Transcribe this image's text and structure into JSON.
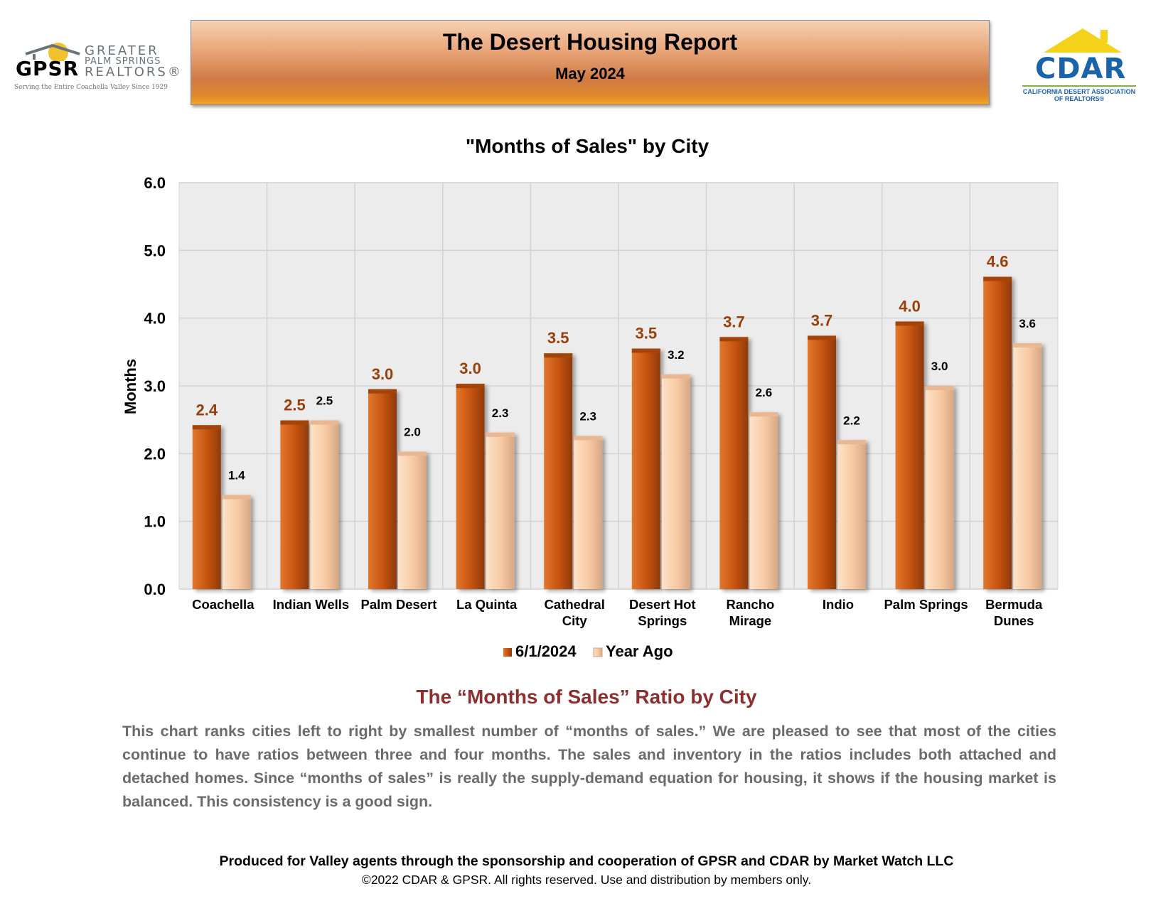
{
  "header": {
    "title": "The Desert Housing Report",
    "subtitle": "May 2024"
  },
  "logos": {
    "gpsr": {
      "letters": "GPSR",
      "line1": "GREATER",
      "line2": "PALM SPRINGS",
      "line3": "REALTORS®",
      "tagline": "Serving the Entire Coachella Valley Since 1929"
    },
    "cdar": {
      "letters": "CDAR",
      "subline1": "CALIFORNIA DESERT ASSOCIATION",
      "subline2": "OF REALTORS®"
    }
  },
  "chart_data": {
    "type": "bar",
    "title": "\"Months of Sales\" by City",
    "xlabel": "",
    "ylabel": "Months",
    "ylim": [
      0,
      6
    ],
    "yticks": [
      "0.0",
      "1.0",
      "2.0",
      "3.0",
      "4.0",
      "5.0",
      "6.0"
    ],
    "grid": true,
    "legend_position": "bottom",
    "categories": [
      [
        "Coachella"
      ],
      [
        "Indian Wells"
      ],
      [
        "Palm Desert"
      ],
      [
        "La Quinta"
      ],
      [
        "Cathedral",
        "City"
      ],
      [
        "Desert Hot",
        "Springs"
      ],
      [
        "Rancho",
        "Mirage"
      ],
      [
        "Indio"
      ],
      [
        "Palm Springs"
      ],
      [
        "Bermuda",
        "Dunes"
      ]
    ],
    "series": [
      {
        "name": "6/1/2024",
        "color": "#c95a15",
        "values": [
          2.42,
          2.49,
          2.95,
          3.03,
          3.48,
          3.55,
          3.72,
          3.74,
          3.95,
          4.61
        ],
        "labels": [
          "2.4",
          "2.5",
          "3.0",
          "3.0",
          "3.5",
          "3.5",
          "3.7",
          "3.7",
          "4.0",
          "4.6"
        ]
      },
      {
        "name": "Year Ago",
        "color": "#f8ceaa",
        "values": [
          1.39,
          2.49,
          2.03,
          2.31,
          2.26,
          3.17,
          2.61,
          2.2,
          3.0,
          3.63
        ],
        "labels": [
          "1.4",
          "2.5",
          "2.0",
          "2.3",
          "2.3",
          "3.2",
          "2.6",
          "2.2",
          "3.0",
          "3.6"
        ]
      }
    ]
  },
  "section": {
    "heading": "The “Months of Sales” Ratio by City",
    "body": "This chart ranks cities left to right by smallest number of “months of sales.” We are pleased to see that most of the cities continue to have ratios between three and four months. The sales and inventory in the ratios includes both attached and detached homes. Since “months of sales” is really the supply-demand equation for housing, it shows if the housing market is balanced. This consistency is a good sign."
  },
  "footer": {
    "produced": "Produced for Valley agents through the sponsorship and cooperation of GPSR and CDAR by Market Watch LLC",
    "copyright": "©2022 CDAR & GPSR.  All rights reserved.  Use and distribution by members only."
  }
}
